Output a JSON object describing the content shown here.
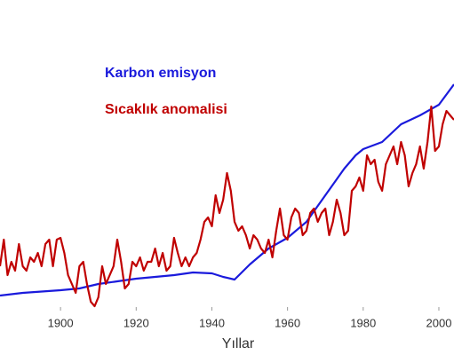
{
  "chart_data": {
    "type": "line",
    "xlabel": "Yıllar",
    "xlim": [
      1884,
      2004
    ],
    "xticks": [
      1900,
      1920,
      1940,
      1960,
      1980,
      2000
    ],
    "ylim": [
      0,
      270
    ],
    "series": [
      {
        "name": "Karbon emisyon",
        "color": "#1a1adc",
        "x": [
          1884,
          1890,
          1900,
          1905,
          1910,
          1915,
          1920,
          1925,
          1930,
          1935,
          1940,
          1943,
          1946,
          1950,
          1955,
          1960,
          1965,
          1970,
          1975,
          1978,
          1980,
          1985,
          1990,
          1995,
          2000,
          2004
        ],
        "values": [
          17,
          20,
          23,
          25,
          30,
          33,
          36,
          38,
          40,
          43,
          42,
          38,
          35,
          52,
          70,
          82,
          100,
          130,
          160,
          175,
          182,
          190,
          210,
          220,
          232,
          255
        ]
      },
      {
        "name": "Sıcaklık anomalisi",
        "color": "#c00000",
        "x": [
          1884,
          1885,
          1886,
          1887,
          1888,
          1889,
          1890,
          1891,
          1892,
          1893,
          1894,
          1895,
          1896,
          1897,
          1898,
          1899,
          1900,
          1901,
          1902,
          1903,
          1904,
          1905,
          1906,
          1907,
          1908,
          1909,
          1910,
          1911,
          1912,
          1913,
          1914,
          1915,
          1916,
          1917,
          1918,
          1919,
          1920,
          1921,
          1922,
          1923,
          1924,
          1925,
          1926,
          1927,
          1928,
          1929,
          1930,
          1931,
          1932,
          1933,
          1934,
          1935,
          1936,
          1937,
          1938,
          1939,
          1940,
          1941,
          1942,
          1943,
          1944,
          1945,
          1946,
          1947,
          1948,
          1949,
          1950,
          1951,
          1952,
          1953,
          1954,
          1955,
          1956,
          1957,
          1958,
          1959,
          1960,
          1961,
          1962,
          1963,
          1964,
          1965,
          1966,
          1967,
          1968,
          1969,
          1970,
          1971,
          1972,
          1973,
          1974,
          1975,
          1976,
          1977,
          1978,
          1979,
          1980,
          1981,
          1982,
          1983,
          1984,
          1985,
          1986,
          1987,
          1988,
          1989,
          1990,
          1991,
          1992,
          1993,
          1994,
          1995,
          1996,
          1997,
          1998,
          1999,
          2000,
          2001,
          2002,
          2003,
          2004
        ],
        "values": [
          50,
          80,
          40,
          55,
          45,
          75,
          50,
          45,
          60,
          55,
          65,
          50,
          75,
          80,
          50,
          80,
          82,
          65,
          40,
          30,
          20,
          50,
          55,
          30,
          10,
          5,
          15,
          50,
          30,
          40,
          50,
          80,
          55,
          25,
          30,
          55,
          50,
          60,
          45,
          55,
          55,
          70,
          50,
          65,
          45,
          50,
          82,
          65,
          50,
          60,
          50,
          60,
          65,
          80,
          100,
          105,
          95,
          130,
          110,
          125,
          155,
          135,
          100,
          90,
          95,
          85,
          70,
          85,
          80,
          70,
          65,
          80,
          60,
          90,
          115,
          85,
          80,
          105,
          115,
          110,
          85,
          90,
          110,
          115,
          100,
          110,
          115,
          85,
          100,
          125,
          110,
          85,
          90,
          135,
          140,
          150,
          135,
          175,
          165,
          170,
          145,
          135,
          165,
          175,
          185,
          165,
          190,
          175,
          140,
          155,
          165,
          185,
          160,
          190,
          230,
          180,
          185,
          210,
          225,
          220,
          215
        ]
      }
    ]
  }
}
